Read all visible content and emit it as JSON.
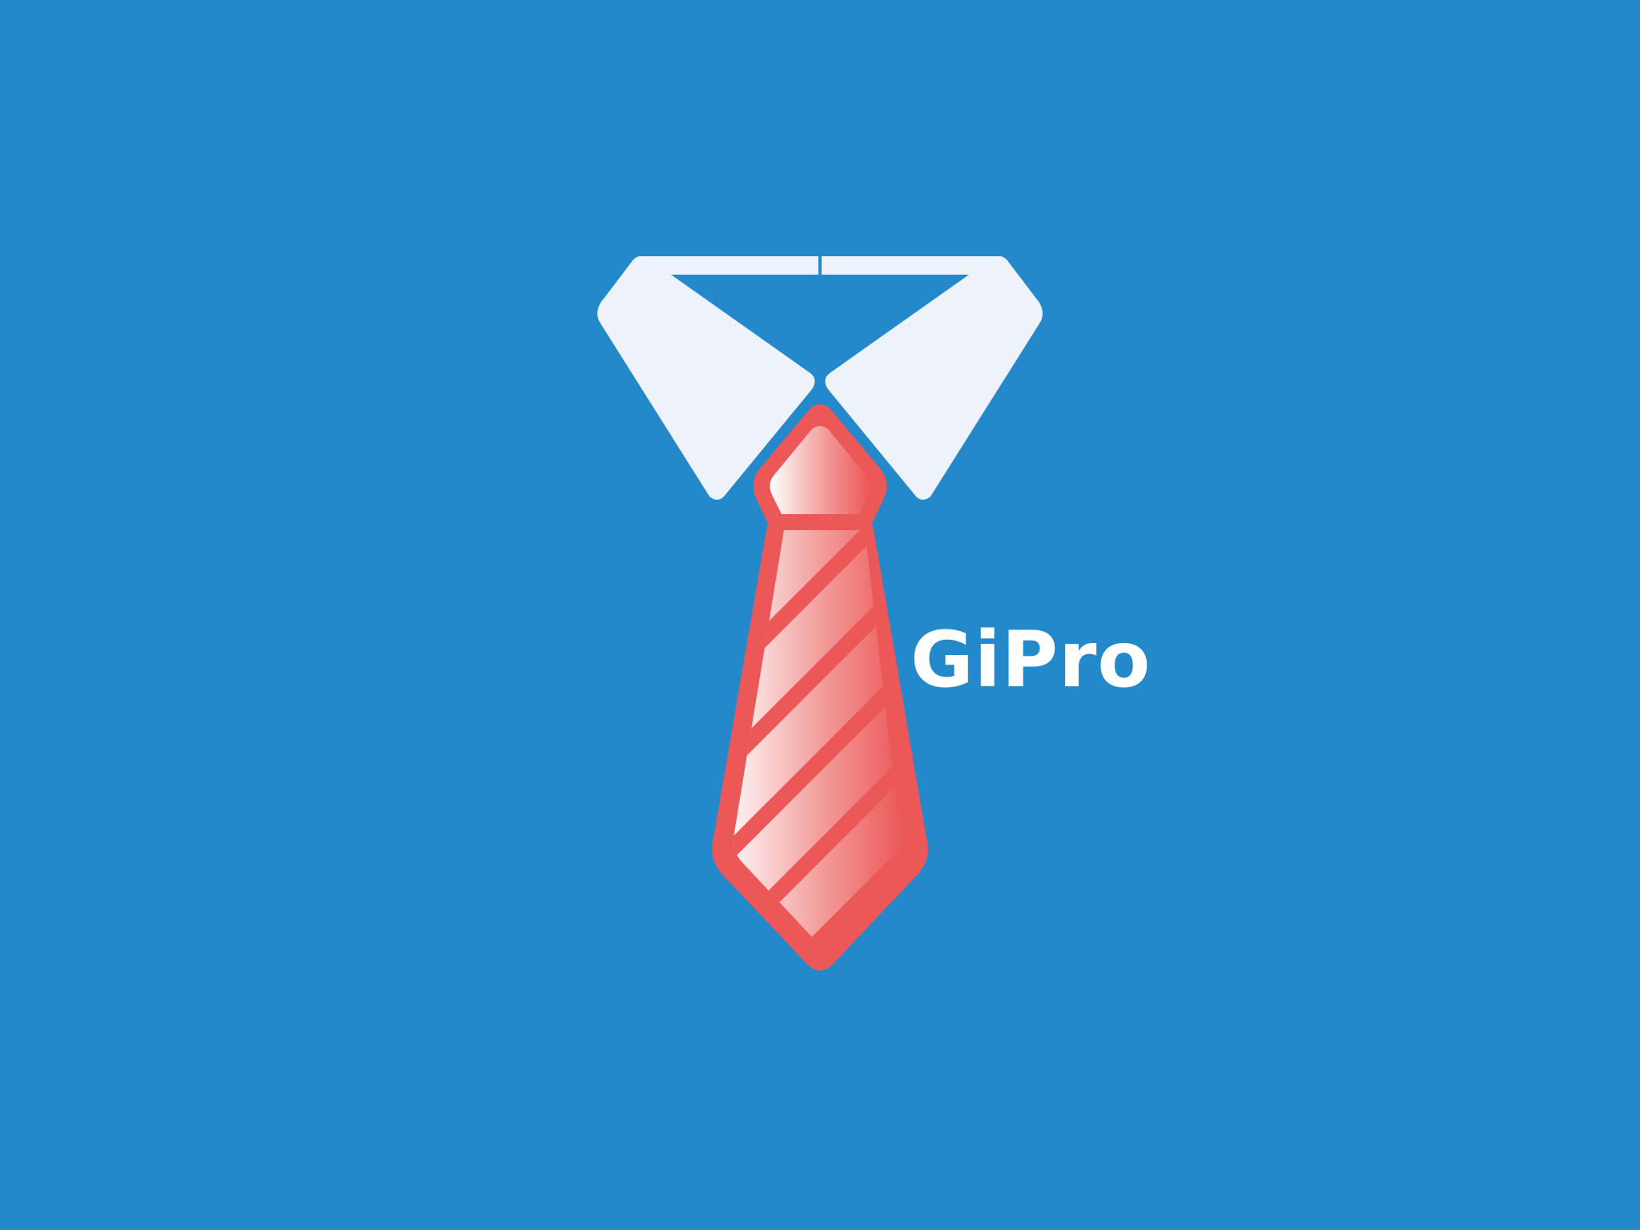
{
  "brand": {
    "name": "GiPro"
  },
  "colors": {
    "background": "#2389CB",
    "collar": "#EEF3FB",
    "tie": "#EC5757",
    "tie_highlight": "#FFFFFF",
    "text": "#FFFFFF"
  },
  "icons": {
    "collar": "shirt-collar-icon",
    "tie": "necktie-icon"
  }
}
